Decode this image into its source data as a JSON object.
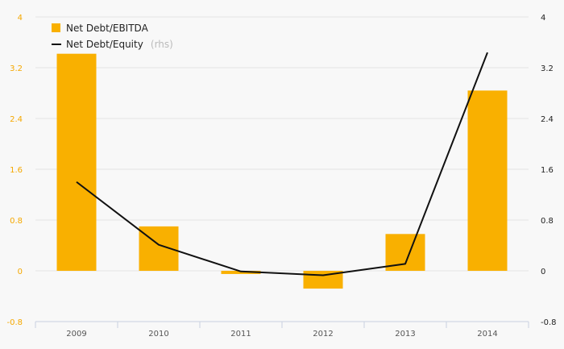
{
  "chart_data": {
    "type": "bar",
    "categories": [
      "2009",
      "2010",
      "2011",
      "2012",
      "2013",
      "2014"
    ],
    "series": [
      {
        "name": "Net Debt/EBITDA",
        "type": "bar",
        "axis": "left",
        "color": "#f9b000",
        "values": [
          3.42,
          0.7,
          -0.05,
          -0.28,
          0.58,
          2.84
        ]
      },
      {
        "name": "Net Debt/Equity",
        "name_note": "(rhs)",
        "type": "line",
        "axis": "right",
        "color": "#111111",
        "values": [
          1.4,
          0.41,
          -0.01,
          -0.07,
          0.11,
          3.44
        ]
      }
    ],
    "y_left": {
      "ticks": [
        "4",
        "3.2",
        "2.4",
        "1.6",
        "0.8",
        "0",
        "-0.8"
      ],
      "range": [
        -0.8,
        4
      ],
      "color": "#f5a800"
    },
    "y_right": {
      "ticks": [
        "4",
        "3.2",
        "2.4",
        "1.6",
        "0.8",
        "0",
        "-0.8"
      ],
      "range": [
        -0.8,
        4
      ],
      "color": "#222222"
    },
    "grid": true,
    "legend_position": "top-left"
  }
}
